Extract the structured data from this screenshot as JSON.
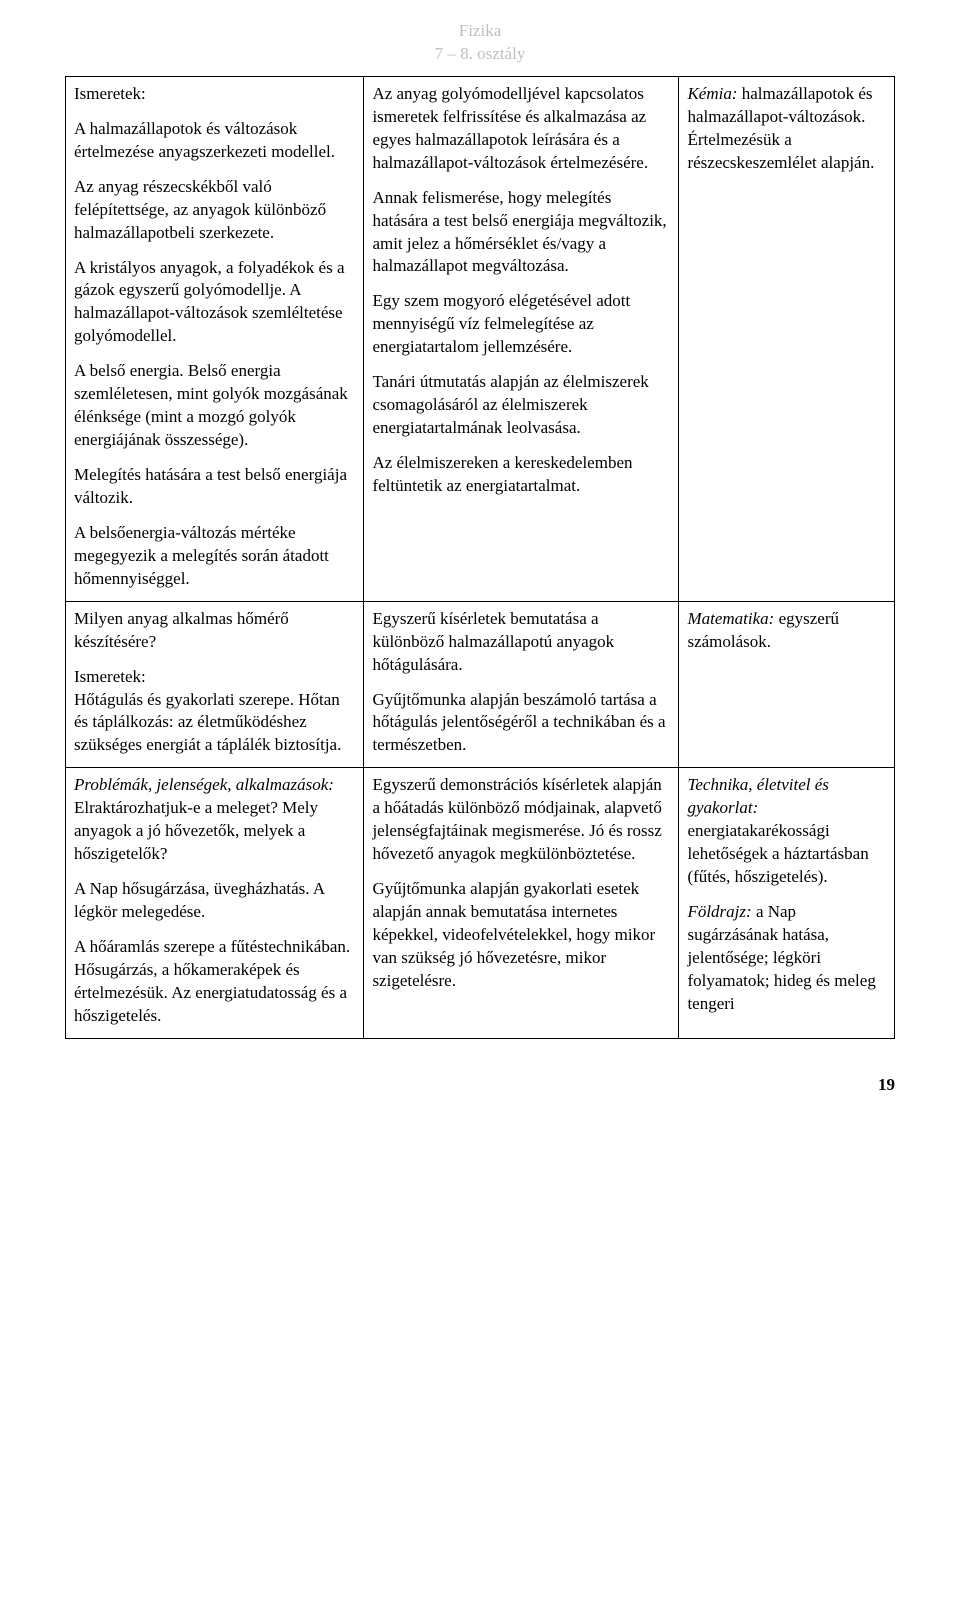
{
  "header": {
    "line1": "Fizika",
    "line2": "7 – 8. osztály"
  },
  "table": {
    "rows": [
      {
        "c1": {
          "p1_title": "Ismeretek:",
          "p2": "A halmazállapotok és változások értelmezése anyagszerkezeti modellel.",
          "p3": "Az anyag részecskékből való felépítettsége, az anyagok különböző halmazállapotbeli szerkezete.",
          "p4": "A kristályos anyagok, a folyadékok és a gázok egyszerű golyómodellje. A halmazállapot-változások szemléltetése golyómodellel.",
          "p5": "A belső energia. Belső energia szemléletesen, mint golyók mozgásának élénksége (mint a mozgó golyók energiájának összessége).",
          "p6": "Melegítés hatására a test belső energiája változik.",
          "p7": "A belsőenergia-változás mértéke megegyezik a melegítés során átadott hőmennyiséggel."
        },
        "c2": {
          "p1": "Az anyag golyómodelljével kapcsolatos ismeretek felfrissítése és alkalmazása az egyes halmazállapotok leírására és a halmazállapot-változások értelmezésére.",
          "p2": "Annak felismerése, hogy melegítés hatására a test belső energiája megváltozik, amit jelez a hőmérséklet és/vagy a halmazállapot megváltozása.",
          "p3": "Egy szem mogyoró elégetésével adott mennyiségű víz felmelegítése az energiatartalom jellemzésére.",
          "p4": "Tanári útmutatás alapján az élelmiszerek csomagolásáról az élelmiszerek energiatartalmának leolvasása.",
          "p5": "Az élelmiszereken a kereskedelemben feltüntetik az energiatartalmat."
        },
        "c3": {
          "label": "Kémia:",
          "text": " halmazállapotok és halmazállapot-változások. Értelmezésük a részecskeszemlélet alapján."
        }
      },
      {
        "c1": {
          "p1": "Milyen anyag alkalmas hőmérő készítésére?",
          "p2_title": "Ismeretek:",
          "p3": "Hőtágulás és gyakorlati szerepe. Hőtan és táplálkozás: az életműködéshez szükséges energiát a táplálék biztosítja."
        },
        "c2": {
          "p1": "Egyszerű kísérletek bemutatása a különböző halmazállapotú anyagok hőtágulására.",
          "p2": "Gyűjtőmunka alapján beszámoló tartása a hőtágulás jelentőségéről a technikában és a természetben."
        },
        "c3": {
          "label": "Matematika:",
          "text": " egyszerű számolások."
        }
      },
      {
        "c1": {
          "title": "Problémák, jelenségek, alkalmazások:",
          "p1": "Elraktározhatjuk-e a meleget? Mely anyagok a jó hővezetők, melyek a hőszigetelők?",
          "p2": "A Nap hősugárzása, üvegházhatás. A légkör melegedése.",
          "p3": "A hőáramlás szerepe a fűtéstechnikában. Hősugárzás, a hőkameraképek és értelmezésük. Az energiatudatosság és a hőszigetelés."
        },
        "c2": {
          "p1": "Egyszerű demonstrációs kísérletek alapján a hőátadás különböző módjainak, alapvető jelenségfajtáinak megismerése. Jó és rossz hővezető anyagok megkülönböztetése.",
          "p2": "Gyűjtőmunka alapján gyakorlati esetek alapján annak bemutatása internetes képekkel, videofelvételekkel, hogy mikor van szükség jó hővezetésre, mikor szigetelésre."
        },
        "c3": {
          "label1": "Technika, életvitel és gyakorlat:",
          "text1": " energiatakarékossági lehetőségek a háztartásban (fűtés, hőszigetelés).",
          "label2": "Földrajz:",
          "text2": " a Nap sugárzásának hatása, jelentősége; légköri folyamatok; hideg és meleg tengeri"
        }
      }
    ]
  },
  "pageNumber": "19"
}
